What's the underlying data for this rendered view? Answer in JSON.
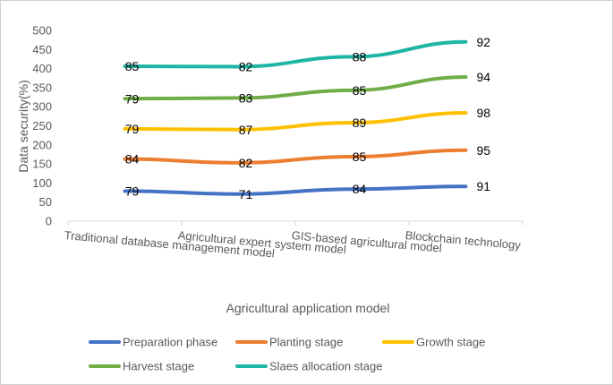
{
  "chart_data": {
    "type": "line",
    "title": "",
    "xlabel": "Agricultural application model",
    "ylabel": "Data security(%)",
    "ylim": [
      0,
      500
    ],
    "yticks": [
      0,
      50,
      100,
      150,
      200,
      250,
      300,
      350,
      400,
      450,
      500
    ],
    "grid": false,
    "stacked": true,
    "legend_position": "bottom",
    "categories": [
      "Traditional database management model",
      "Agricultural expert system model",
      "GIS-based agricultural model",
      "Blockchain technology"
    ],
    "series": [
      {
        "name": "Preparation phase",
        "color": "#4472C4",
        "values": [
          79,
          71,
          84,
          91
        ]
      },
      {
        "name": "Planting stage",
        "color": "#ED7D31",
        "values": [
          84,
          82,
          85,
          95
        ]
      },
      {
        "name": "Growth stage",
        "color": "#FFC000",
        "values": [
          79,
          87,
          89,
          98
        ]
      },
      {
        "name": "Harvest stage",
        "color": "#70AD47",
        "values": [
          79,
          83,
          85,
          94
        ]
      },
      {
        "name": "Slaes allocation stage",
        "color": "#1FB5A5",
        "values": [
          85,
          82,
          88,
          92
        ]
      }
    ]
  }
}
